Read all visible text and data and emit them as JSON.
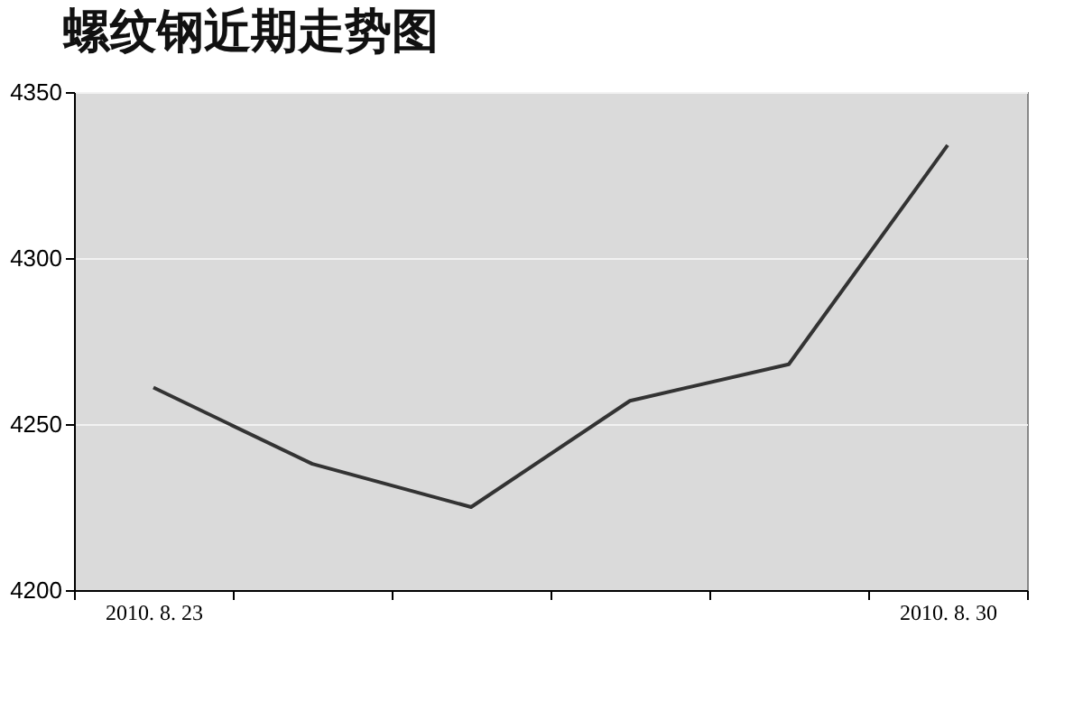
{
  "chart_data": {
    "type": "line",
    "title": "螺纹钢近期走势图",
    "categories": [
      "2010. 8. 23",
      null,
      null,
      null,
      null,
      "2010. 8. 30"
    ],
    "series": [
      {
        "color": "#333333",
        "values": [
          4261,
          4238,
          4225,
          4257,
          4268,
          4334
        ]
      }
    ],
    "ylim": [
      4200,
      4350
    ],
    "yticks": [
      4200,
      4250,
      4300,
      4350
    ],
    "grid": "y",
    "line_style": "solid"
  }
}
